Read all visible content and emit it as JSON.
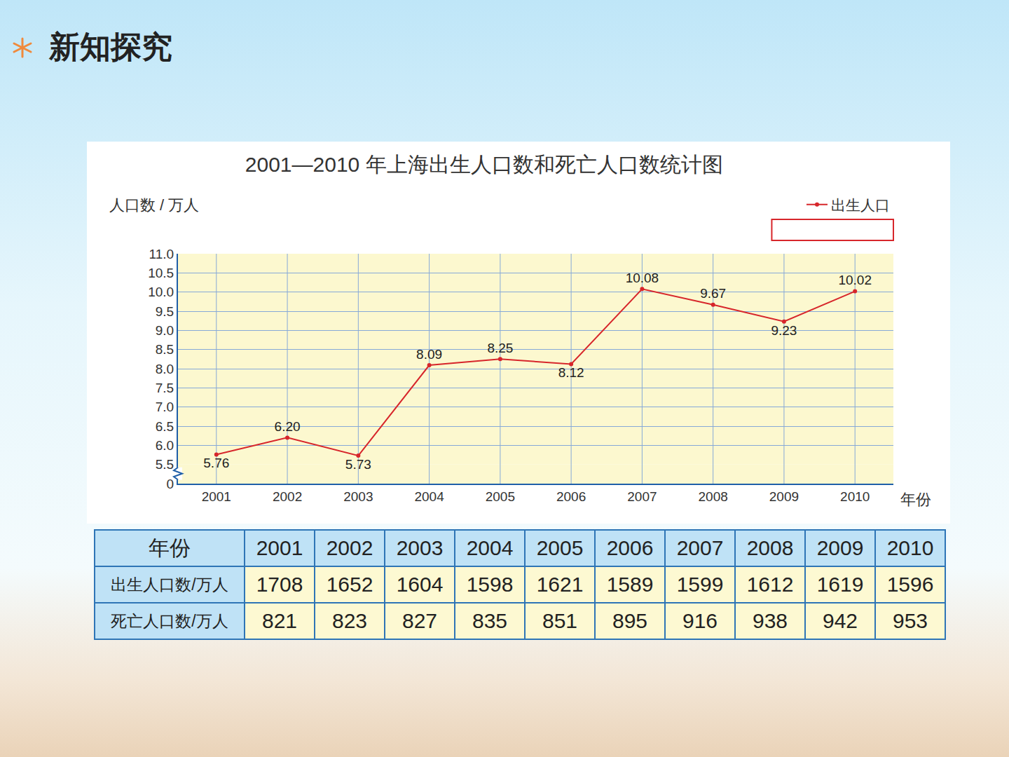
{
  "header": {
    "title": "新知探究"
  },
  "chart_data": {
    "type": "line",
    "title": "2001—2010 年上海出生人口数和死亡人口数统计图",
    "y_label": "人口数 / 万人",
    "x_label": "年份",
    "categories": [
      "2001",
      "2002",
      "2003",
      "2004",
      "2005",
      "2006",
      "2007",
      "2008",
      "2009",
      "2010"
    ],
    "series": [
      {
        "name": "出生人口",
        "color": "#d7262b",
        "marker": "circle",
        "line_style": "solid",
        "values": [
          5.76,
          6.2,
          5.73,
          8.09,
          8.25,
          8.12,
          10.08,
          9.67,
          9.23,
          10.02
        ],
        "value_labels": [
          "5.76",
          "6.20",
          "5.73",
          "8.09",
          "8.25",
          "8.12",
          "10.08",
          "9.67",
          "9.23",
          "10.02"
        ]
      }
    ],
    "ylim": [
      0,
      11.0
    ],
    "yticks": [
      0,
      5.5,
      {
        "value": 6,
        "label": "6.0"
      },
      6.5,
      {
        "value": 7,
        "label": "7.0"
      },
      7.5,
      {
        "value": 8,
        "label": "8.0"
      },
      8.5,
      {
        "value": 9,
        "label": "9.0"
      },
      9.5,
      {
        "value": 10,
        "label": "10.0"
      },
      10.5,
      {
        "value": 11,
        "label": "11.0"
      }
    ],
    "grid": true,
    "legend": "top right",
    "data_labels": true
  },
  "table": {
    "header": [
      "年份",
      "2001",
      "2002",
      "2003",
      "2004",
      "2005",
      "2006",
      "2007",
      "2008",
      "2009",
      "2010"
    ],
    "rows": [
      [
        "出生人口数/万人",
        1708,
        1652,
        1604,
        1598,
        1621,
        1589,
        1599,
        1612,
        1619,
        1596
      ],
      [
        "死亡人口数/万人",
        821,
        823,
        827,
        835,
        851,
        895,
        916,
        938,
        942,
        953
      ]
    ]
  }
}
